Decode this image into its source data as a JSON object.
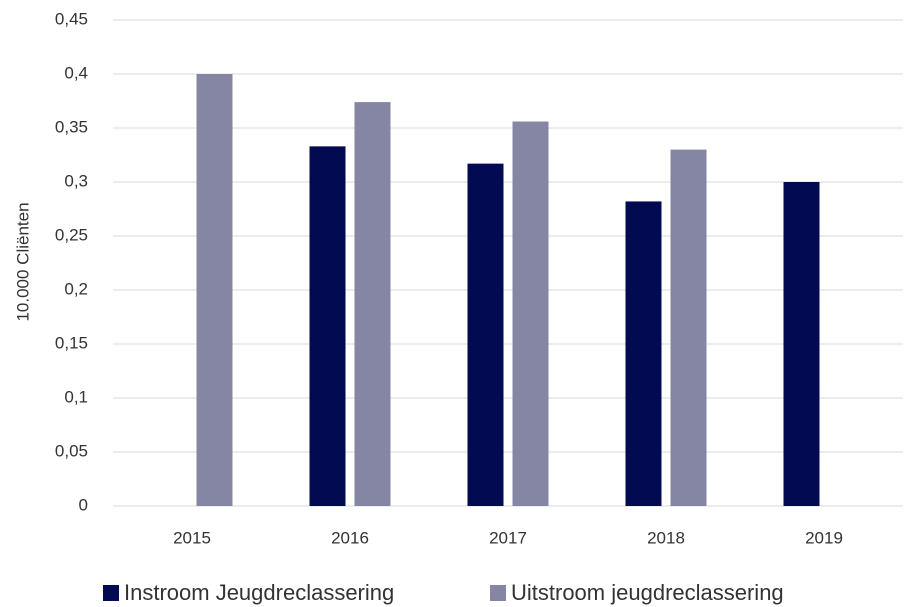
{
  "chart_data": {
    "type": "bar",
    "y_label": "10.000 Cliënten",
    "categories": [
      "2015",
      "2016",
      "2017",
      "2018",
      "2019"
    ],
    "series": [
      {
        "name": "Instroom Jeugdreclassering",
        "color": "#020a52",
        "values": [
          null,
          0.333,
          0.317,
          0.282,
          0.3
        ]
      },
      {
        "name": "Uitstroom jeugdreclassering",
        "color": "#8586a3",
        "values": [
          0.4,
          0.374,
          0.356,
          0.33,
          null
        ]
      }
    ],
    "ylim": [
      0,
      0.45
    ],
    "yticks": [
      0,
      {
        "value": 0.05,
        "label": "0,05"
      },
      {
        "value": 0.1,
        "label": "0,1"
      },
      {
        "value": 0.15,
        "label": "0,15"
      },
      {
        "value": 0.2,
        "label": "0,2"
      },
      {
        "value": 0.25,
        "label": "0,25"
      },
      {
        "value": 0.3,
        "label": "0,3"
      },
      {
        "value": 0.35,
        "label": "0,35"
      },
      {
        "value": 0.4,
        "label": "0,4"
      },
      {
        "value": 0.45,
        "label": "0,45"
      }
    ],
    "grid": true,
    "legend": "bottom"
  }
}
